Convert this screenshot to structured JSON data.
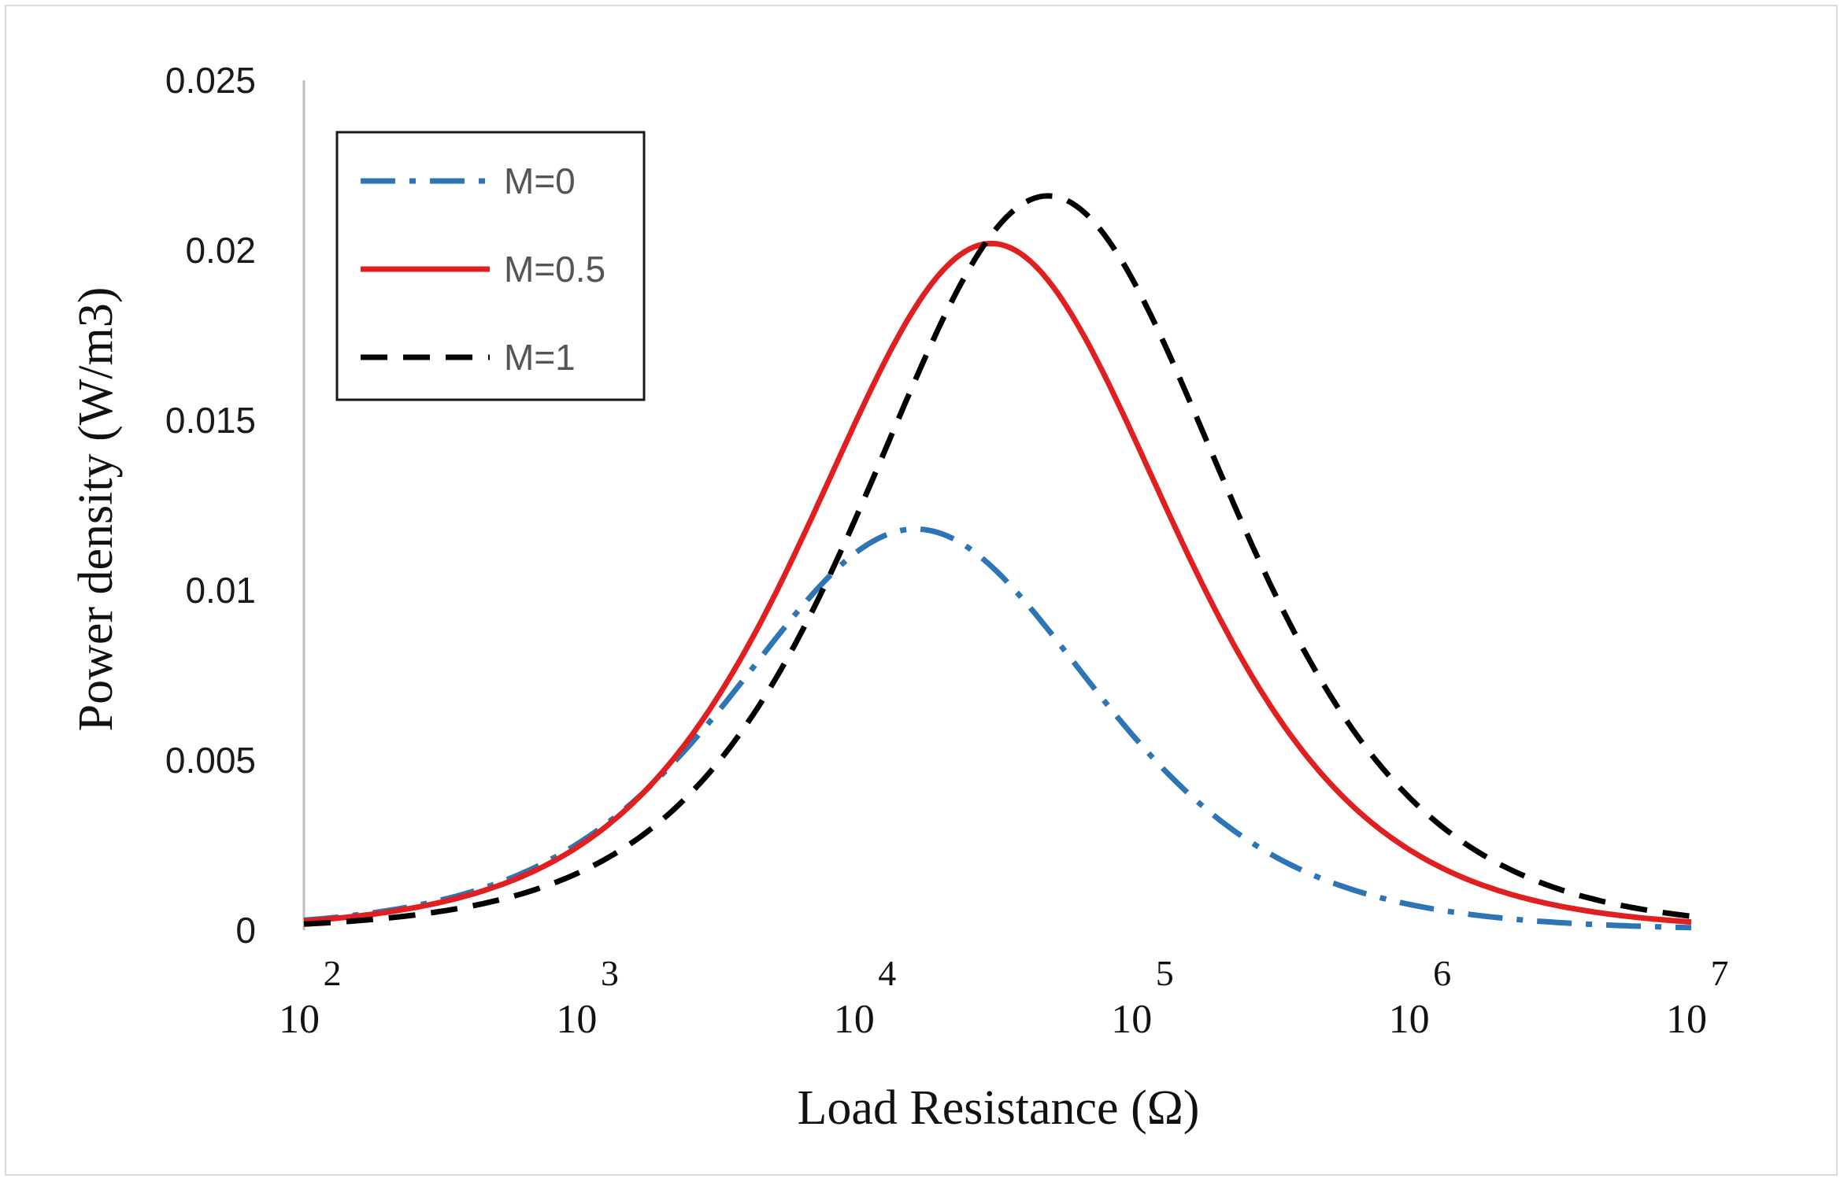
{
  "chart_data": {
    "type": "line",
    "title": "",
    "xlabel": "Load Resistance (Ω)",
    "ylabel": "Power density (W/m3)",
    "xscale": "log",
    "xlim": [
      100,
      10000000
    ],
    "ylim": [
      0,
      0.025
    ],
    "grid": false,
    "legend_position": "top-left",
    "y_ticks": [
      {
        "value": 0,
        "label": "0"
      },
      {
        "value": 0.005,
        "label": "0.005"
      },
      {
        "value": 0.01,
        "label": "0.01"
      },
      {
        "value": 0.015,
        "label": "0.015"
      },
      {
        "value": 0.02,
        "label": "0.02"
      },
      {
        "value": 0.025,
        "label": "0.025"
      }
    ],
    "x_ticks": [
      {
        "value": 100,
        "base": "10",
        "exponent": "2"
      },
      {
        "value": 1000,
        "base": "10",
        "exponent": "3"
      },
      {
        "value": 10000,
        "base": "10",
        "exponent": "4"
      },
      {
        "value": 100000,
        "base": "10",
        "exponent": "5"
      },
      {
        "value": 1000000,
        "base": "10",
        "exponent": "6"
      },
      {
        "value": 10000000,
        "base": "10",
        "exponent": "7"
      }
    ],
    "series": [
      {
        "name": "M=0",
        "color": "#2E75B6",
        "style": "dashdot",
        "peak_x": 16000,
        "peak_y": 0.0118
      },
      {
        "name": "M=0.5",
        "color": "#E02020",
        "style": "solid",
        "peak_x": 30000,
        "peak_y": 0.0202
      },
      {
        "name": "M=1",
        "color": "#000000",
        "style": "dashed",
        "peak_x": 48000,
        "peak_y": 0.0216
      }
    ]
  }
}
